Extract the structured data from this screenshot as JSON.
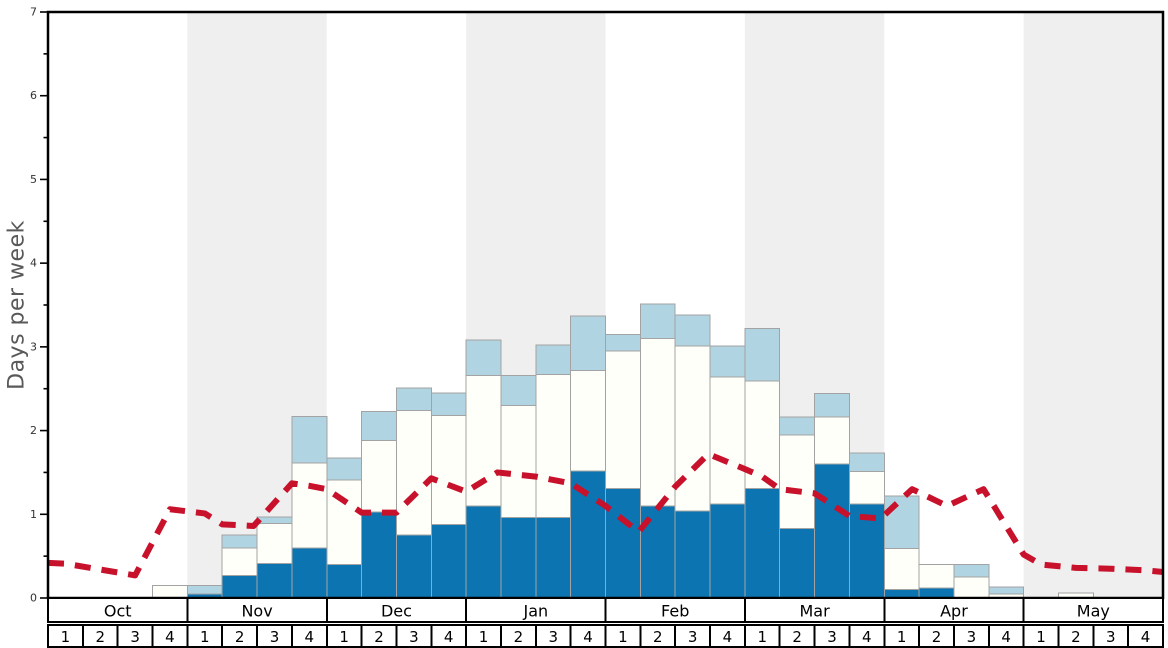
{
  "chart_data": {
    "type": "bar",
    "title": "",
    "ylabel": "Days per week",
    "xlabel": "",
    "ylim": [
      0,
      7
    ],
    "y_major_ticks": [
      0,
      1,
      2,
      3,
      4,
      5,
      6,
      7
    ],
    "y_minor_step": 0.5,
    "legend": "none",
    "grid": "off",
    "months": [
      "Oct",
      "Nov",
      "Dec",
      "Jan",
      "Feb",
      "Mar",
      "Apr",
      "May"
    ],
    "weeks_per_month": [
      "1",
      "2",
      "3",
      "4"
    ],
    "shaded_months": [
      "Nov",
      "Jan",
      "Mar",
      "May"
    ],
    "bar_orientation": "vertical-stacked",
    "series": [
      {
        "name": "dark-blue-segment",
        "color": "#0b74b1",
        "values": [
          0,
          0,
          0,
          0,
          0.05,
          0.27,
          0.41,
          0.6,
          0.4,
          1.03,
          0.75,
          0.88,
          1.1,
          0.96,
          0.96,
          1.52,
          1.31,
          1.1,
          1.04,
          1.12,
          1.31,
          0.83,
          1.6,
          1.12,
          0.1,
          0.12,
          0,
          0,
          0,
          0,
          0,
          0
        ]
      },
      {
        "name": "white-segment",
        "color": "#fffffa",
        "values": [
          0,
          0,
          0,
          0.15,
          0,
          0.33,
          0.48,
          1.01,
          1.01,
          0.85,
          1.49,
          1.3,
          1.56,
          1.34,
          1.71,
          1.2,
          1.64,
          2.0,
          1.97,
          1.52,
          1.28,
          1.12,
          0.56,
          0.39,
          0.49,
          0.28,
          0.25,
          0.05,
          0,
          0.06,
          0,
          0
        ]
      },
      {
        "name": "light-blue-segment",
        "color": "#b0d4e1",
        "values": [
          0,
          0,
          0,
          0,
          0.1,
          0.15,
          0.08,
          0.56,
          0.26,
          0.35,
          0.27,
          0.27,
          0.42,
          0.36,
          0.35,
          0.65,
          0.2,
          0.41,
          0.37,
          0.37,
          0.63,
          0.21,
          0.28,
          0.22,
          0.63,
          0,
          0.15,
          0.08,
          0,
          0,
          0,
          0
        ]
      }
    ],
    "line_series": {
      "name": "red-dashed-line",
      "color": "#c8112b",
      "style": "dashed",
      "x_unit": "weeks-from-Oct-week1 (0..32 across plot)",
      "points": [
        [
          0.0,
          0.42
        ],
        [
          0.5,
          0.41
        ],
        [
          1.5,
          0.34
        ],
        [
          2.5,
          0.27
        ],
        [
          3.5,
          1.06
        ],
        [
          4.5,
          1.01
        ],
        [
          5.0,
          0.88
        ],
        [
          5.9,
          0.86
        ],
        [
          7.0,
          1.37
        ],
        [
          7.5,
          1.34
        ],
        [
          8.0,
          1.3
        ],
        [
          9.0,
          1.02
        ],
        [
          10.0,
          1.02
        ],
        [
          11.0,
          1.43
        ],
        [
          12.0,
          1.27
        ],
        [
          12.9,
          1.5
        ],
        [
          14.0,
          1.45
        ],
        [
          15.0,
          1.37
        ],
        [
          16.0,
          1.1
        ],
        [
          16.95,
          0.79
        ],
        [
          18.0,
          1.33
        ],
        [
          18.95,
          1.72
        ],
        [
          20.0,
          1.54
        ],
        [
          20.5,
          1.45
        ],
        [
          21.0,
          1.3
        ],
        [
          22.0,
          1.25
        ],
        [
          23.0,
          0.98
        ],
        [
          23.9,
          0.95
        ],
        [
          24.8,
          1.3
        ],
        [
          25.8,
          1.1
        ],
        [
          26.85,
          1.3
        ],
        [
          28.0,
          0.52
        ],
        [
          28.5,
          0.4
        ],
        [
          29.5,
          0.36
        ],
        [
          30.5,
          0.35
        ],
        [
          31.5,
          0.33
        ],
        [
          32.0,
          0.31
        ]
      ]
    }
  },
  "colors": {
    "background": "#ffffff",
    "shaded_band": "#efefef",
    "bar_border": "#a3a3a3",
    "axis_frame": "#000000",
    "tick_label": "#333333",
    "table_text": "#000000",
    "y_axis_label": "#595959"
  }
}
